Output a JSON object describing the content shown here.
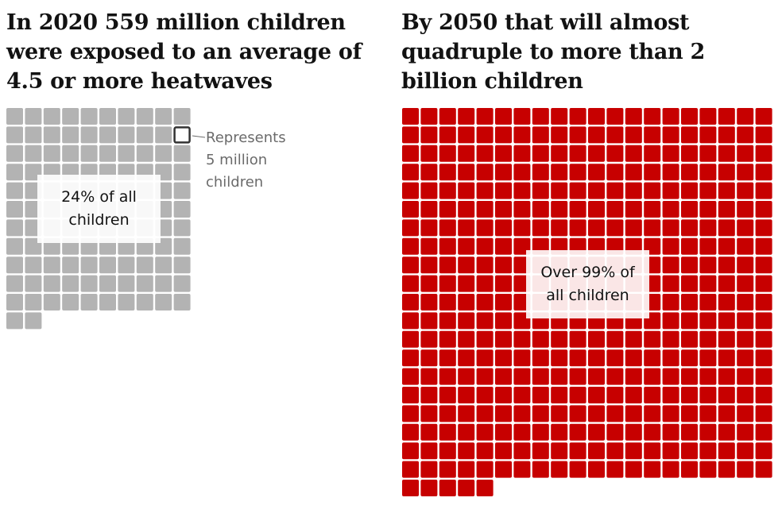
{
  "titles": {
    "left": "In 2020 559 million children were exposed to an average of 4.5 or more heatwaves",
    "right": "By 2050 that will almost quadruple to more than 2 billion children"
  },
  "legend": {
    "line1": "Represents",
    "line2": "5 million",
    "line3": "children",
    "unit_value": 5
  },
  "colors": {
    "grey_square": "#b3b3b3",
    "red_square": "#c70000",
    "legend_outline": "#333333"
  },
  "chart_data": [
    {
      "type": "waffle",
      "year": 2020,
      "squares": 112,
      "columns": 10,
      "unit": "5 million children per square",
      "label_line1": "24% of all",
      "label_line2": "children",
      "legend_square_index": 19
    },
    {
      "type": "waffle",
      "year": 2050,
      "squares": 405,
      "columns": 20,
      "unit": "5 million children per square",
      "label_line1": "Over 99% of",
      "label_line2": "all children"
    }
  ]
}
